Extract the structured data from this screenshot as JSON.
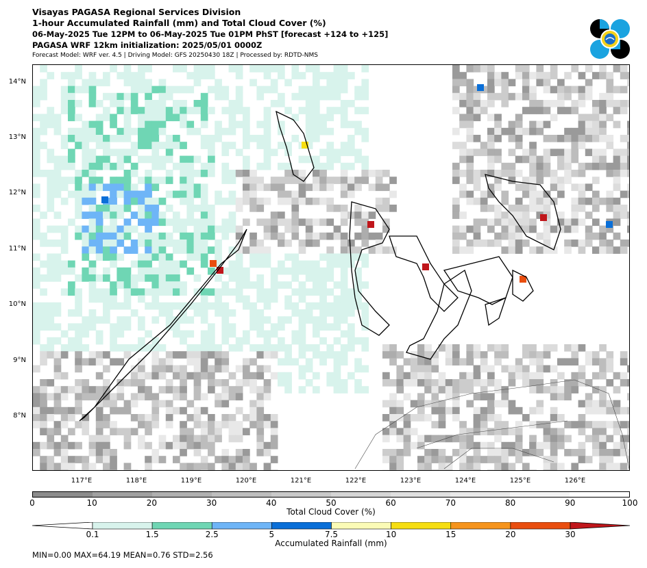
{
  "header": {
    "line1": "Visayas PAGASA Regional Services Division",
    "line2": "1-hour Accumulated Rainfall (mm) and Total Cloud Cover (%)",
    "line3": "06-May-2025 Tue 12PM to 06-May-2025 Tue 01PM PhST [forecast +124 to +125]",
    "line4": "PAGASA WRF 12km initialization: 2025/05/01 0000Z",
    "line5": "Forecast Model: WRF ver. 4.5 | Driving Model: GFS 20250430 18Z | Processed by: RDTD-NMS"
  },
  "map": {
    "lat_labels": [
      "14°N",
      "13°N",
      "12°N",
      "11°N",
      "10°N",
      "9°N",
      "8°N"
    ],
    "lon_labels": [
      "117°E",
      "118°E",
      "119°E",
      "120°E",
      "121°E",
      "122°E",
      "123°E",
      "124°E",
      "125°E",
      "126°E"
    ]
  },
  "cloud_bar": {
    "title": "Total Cloud Cover (%)",
    "ticks": [
      "0",
      "10",
      "20",
      "30",
      "40",
      "50",
      "60",
      "70",
      "80",
      "90",
      "100"
    ],
    "colors": [
      "#8c8c8c",
      "#a0a0a0",
      "#b0b0b0",
      "#bebebe",
      "#cacaca",
      "#d6d6d6",
      "#e0e0e0",
      "#eaeaea",
      "#f4f4f4",
      "#ffffff"
    ]
  },
  "rain_bar": {
    "title": "Accumulated Rainfall (mm)",
    "ticks": [
      "0.1",
      "1.5",
      "2.5",
      "5",
      "7.5",
      "10",
      "15",
      "20",
      "30"
    ],
    "colors": [
      "#d8f3ec",
      "#6fd6b4",
      "#6eb5f7",
      "#0a6fd8",
      "#fbfbb6",
      "#f6de11",
      "#f6941c",
      "#e94e0f",
      "#c0161b"
    ]
  },
  "stats": {
    "text": "MIN=0.00   MAX=64.19   MEAN=0.76   STD=2.56"
  }
}
